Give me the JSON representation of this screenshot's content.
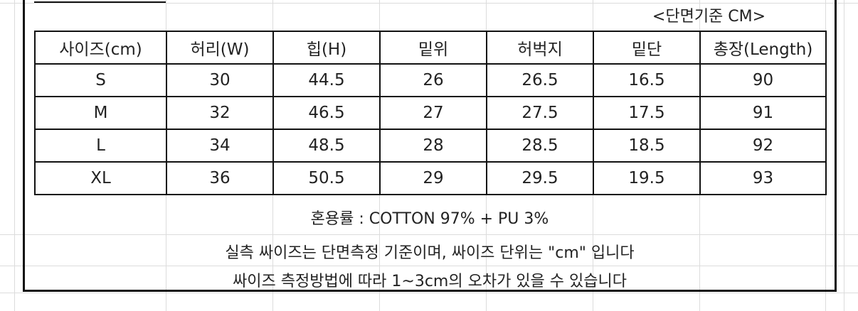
{
  "unit_label": "<단면기준 CM>",
  "headers": [
    "사이즈(cm)",
    "허리(W)",
    "힙(H)",
    "밑위",
    "허벅지",
    "밑단",
    "총장(Length)"
  ],
  "rows": [
    [
      "S",
      "30",
      "44.5",
      "26",
      "26.5",
      "16.5",
      "90"
    ],
    [
      "M",
      "32",
      "46.5",
      "27",
      "27.5",
      "17.5",
      "91"
    ],
    [
      "L",
      "34",
      "48.5",
      "28",
      "28.5",
      "18.5",
      "92"
    ],
    [
      "XL",
      "36",
      "50.5",
      "29",
      "29.5",
      "19.5",
      "93"
    ]
  ],
  "notes": {
    "fabric": "혼용률 : COTTON 97% + PU 3%",
    "measure": "실측 싸이즈는 단면측정 기준이며, 싸이즈 단위는 \"cm\" 입니다",
    "tolerance": "싸이즈 측정방법에 따라 1~3cm의 오차가 있을 수 있습니다"
  }
}
